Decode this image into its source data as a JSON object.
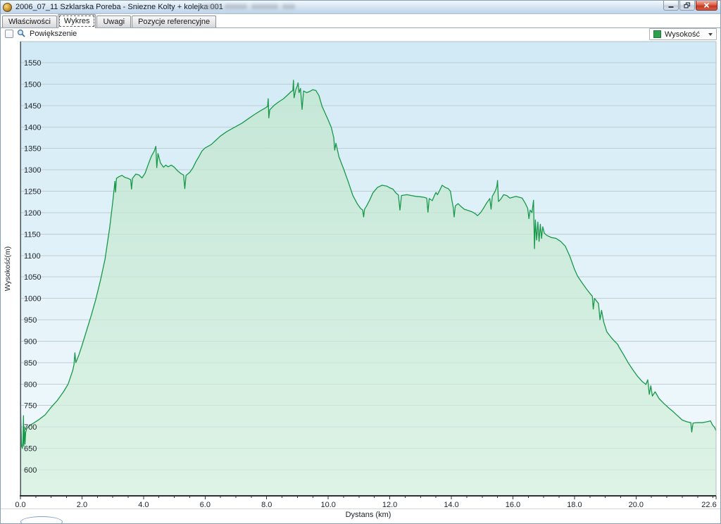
{
  "window": {
    "title": "2006_07_11 Szklarska Poreba - Sniezne Kolty + kolejka 001",
    "buttons": [
      "minimize",
      "restore",
      "close"
    ]
  },
  "tabs": [
    {
      "label": "Właściwości",
      "active": false
    },
    {
      "label": "Wykres",
      "active": true
    },
    {
      "label": "Uwagi",
      "active": false
    },
    {
      "label": "Pozycje referencyjne",
      "active": false
    }
  ],
  "toolbar": {
    "zoom_label": "Powiększenie",
    "zoom_checked": false
  },
  "legend": {
    "label": "Wysokość",
    "swatch_color": "#2f9e4f"
  },
  "chart_data": {
    "type": "area",
    "title": "",
    "xlabel": "Dystans (km)",
    "ylabel": "Wysokość(m)",
    "xlim": [
      0,
      22.6
    ],
    "ylim_gridlines": {
      "min": 600,
      "max": 1550,
      "step": 50
    },
    "x_major_ticks": [
      0,
      2,
      4,
      6,
      8,
      10,
      12,
      14,
      16,
      18,
      20,
      22.6
    ],
    "x_major_labels": [
      "0.0",
      "2.0",
      "4.0",
      "6.0",
      "8.0",
      "10.0",
      "12.0",
      "14.0",
      "16.0",
      "18.0",
      "20.0",
      "22.6"
    ],
    "x_minor_step": 0.5,
    "grid": "horizontal",
    "legend_position": "top-right",
    "colors": {
      "line": "#18984a",
      "fill_top": "#bfe5ca",
      "fill_bottom": "#d3f0dc",
      "grid": "#bfccd4",
      "bg_top": "#d2eaf5",
      "bg_bottom": "#f3fafd"
    },
    "series": [
      {
        "name": "Wysokość",
        "points": [
          [
            0,
            757
          ],
          [
            0.02,
            700
          ],
          [
            0.04,
            655
          ],
          [
            0.06,
            650
          ],
          [
            0.08,
            662
          ],
          [
            0.1,
            726
          ],
          [
            0.11,
            655
          ],
          [
            0.13,
            700
          ],
          [
            0.15,
            660
          ],
          [
            0.17,
            687
          ],
          [
            0.2,
            695
          ],
          [
            0.25,
            700
          ],
          [
            0.32,
            704
          ],
          [
            0.45,
            710
          ],
          [
            0.6,
            717
          ],
          [
            0.8,
            728
          ],
          [
            1.0,
            746
          ],
          [
            1.2,
            762
          ],
          [
            1.4,
            782
          ],
          [
            1.55,
            800
          ],
          [
            1.7,
            832
          ],
          [
            1.74,
            845
          ],
          [
            1.77,
            873
          ],
          [
            1.8,
            850
          ],
          [
            1.9,
            868
          ],
          [
            2.0,
            890
          ],
          [
            2.15,
            925
          ],
          [
            2.3,
            960
          ],
          [
            2.45,
            998
          ],
          [
            2.6,
            1042
          ],
          [
            2.75,
            1092
          ],
          [
            2.9,
            1165
          ],
          [
            3.0,
            1225
          ],
          [
            3.07,
            1273
          ],
          [
            3.09,
            1248
          ],
          [
            3.12,
            1280
          ],
          [
            3.2,
            1284
          ],
          [
            3.3,
            1287
          ],
          [
            3.4,
            1282
          ],
          [
            3.5,
            1280
          ],
          [
            3.58,
            1277
          ],
          [
            3.61,
            1255
          ],
          [
            3.64,
            1280
          ],
          [
            3.75,
            1290
          ],
          [
            3.85,
            1288
          ],
          [
            3.95,
            1281
          ],
          [
            4.05,
            1292
          ],
          [
            4.15,
            1312
          ],
          [
            4.25,
            1331
          ],
          [
            4.35,
            1344
          ],
          [
            4.4,
            1355
          ],
          [
            4.43,
            1305
          ],
          [
            4.47,
            1338
          ],
          [
            4.55,
            1316
          ],
          [
            4.65,
            1306
          ],
          [
            4.72,
            1311
          ],
          [
            4.8,
            1307
          ],
          [
            4.9,
            1311
          ],
          [
            5.0,
            1306
          ],
          [
            5.1,
            1298
          ],
          [
            5.22,
            1291
          ],
          [
            5.3,
            1288
          ],
          [
            5.34,
            1256
          ],
          [
            5.38,
            1287
          ],
          [
            5.5,
            1294
          ],
          [
            5.6,
            1304
          ],
          [
            5.7,
            1319
          ],
          [
            5.8,
            1331
          ],
          [
            5.9,
            1344
          ],
          [
            6.0,
            1351
          ],
          [
            6.1,
            1355
          ],
          [
            6.2,
            1359
          ],
          [
            6.35,
            1369
          ],
          [
            6.5,
            1379
          ],
          [
            6.7,
            1389
          ],
          [
            6.9,
            1397
          ],
          [
            7.0,
            1401
          ],
          [
            7.2,
            1409
          ],
          [
            7.4,
            1419
          ],
          [
            7.6,
            1429
          ],
          [
            7.8,
            1438
          ],
          [
            7.95,
            1444
          ],
          [
            8.03,
            1448
          ],
          [
            8.05,
            1466
          ],
          [
            8.07,
            1421
          ],
          [
            8.1,
            1440
          ],
          [
            8.25,
            1451
          ],
          [
            8.4,
            1459
          ],
          [
            8.55,
            1466
          ],
          [
            8.7,
            1476
          ],
          [
            8.8,
            1483
          ],
          [
            8.85,
            1485
          ],
          [
            8.87,
            1509
          ],
          [
            8.89,
            1468
          ],
          [
            8.95,
            1488
          ],
          [
            9.0,
            1497
          ],
          [
            9.02,
            1503
          ],
          [
            9.05,
            1480
          ],
          [
            9.1,
            1490
          ],
          [
            9.15,
            1441
          ],
          [
            9.2,
            1484
          ],
          [
            9.3,
            1480
          ],
          [
            9.4,
            1483
          ],
          [
            9.5,
            1487
          ],
          [
            9.6,
            1485
          ],
          [
            9.7,
            1473
          ],
          [
            9.8,
            1448
          ],
          [
            9.9,
            1432
          ],
          [
            10.0,
            1416
          ],
          [
            10.1,
            1399
          ],
          [
            10.18,
            1375
          ],
          [
            10.21,
            1346
          ],
          [
            10.25,
            1362
          ],
          [
            10.35,
            1330
          ],
          [
            10.5,
            1302
          ],
          [
            10.65,
            1272
          ],
          [
            10.8,
            1240
          ],
          [
            10.95,
            1220
          ],
          [
            11.05,
            1210
          ],
          [
            11.12,
            1206
          ],
          [
            11.15,
            1190
          ],
          [
            11.18,
            1208
          ],
          [
            11.25,
            1216
          ],
          [
            11.35,
            1230
          ],
          [
            11.45,
            1246
          ],
          [
            11.6,
            1259
          ],
          [
            11.75,
            1264
          ],
          [
            11.9,
            1262
          ],
          [
            12.0,
            1258
          ],
          [
            12.1,
            1255
          ],
          [
            12.2,
            1246
          ],
          [
            12.28,
            1241
          ],
          [
            12.33,
            1206
          ],
          [
            12.38,
            1240
          ],
          [
            12.55,
            1242
          ],
          [
            12.7,
            1240
          ],
          [
            12.85,
            1238
          ],
          [
            13.0,
            1237
          ],
          [
            13.1,
            1236
          ],
          [
            13.2,
            1234
          ],
          [
            13.24,
            1201
          ],
          [
            13.28,
            1233
          ],
          [
            13.38,
            1228
          ],
          [
            13.45,
            1240
          ],
          [
            13.5,
            1247
          ],
          [
            13.55,
            1242
          ],
          [
            13.62,
            1252
          ],
          [
            13.7,
            1264
          ],
          [
            13.8,
            1259
          ],
          [
            13.9,
            1256
          ],
          [
            13.97,
            1250
          ],
          [
            14.02,
            1228
          ],
          [
            14.06,
            1213
          ],
          [
            14.09,
            1190
          ],
          [
            14.13,
            1216
          ],
          [
            14.22,
            1221
          ],
          [
            14.32,
            1214
          ],
          [
            14.42,
            1208
          ],
          [
            14.55,
            1205
          ],
          [
            14.67,
            1202
          ],
          [
            14.77,
            1198
          ],
          [
            14.85,
            1193
          ],
          [
            14.95,
            1200
          ],
          [
            15.05,
            1211
          ],
          [
            15.15,
            1223
          ],
          [
            15.25,
            1233
          ],
          [
            15.29,
            1208
          ],
          [
            15.33,
            1238
          ],
          [
            15.43,
            1251
          ],
          [
            15.48,
            1262
          ],
          [
            15.5,
            1275
          ],
          [
            15.53,
            1226
          ],
          [
            15.6,
            1231
          ],
          [
            15.7,
            1242
          ],
          [
            15.8,
            1240
          ],
          [
            15.9,
            1234
          ],
          [
            16.0,
            1236
          ],
          [
            16.1,
            1238
          ],
          [
            16.2,
            1236
          ],
          [
            16.3,
            1234
          ],
          [
            16.4,
            1222
          ],
          [
            16.48,
            1210
          ],
          [
            16.52,
            1186
          ],
          [
            16.56,
            1206
          ],
          [
            16.62,
            1200
          ],
          [
            16.67,
            1229
          ],
          [
            16.7,
            1116
          ],
          [
            16.73,
            1183
          ],
          [
            16.77,
            1136
          ],
          [
            16.81,
            1178
          ],
          [
            16.85,
            1133
          ],
          [
            16.89,
            1173
          ],
          [
            16.93,
            1140
          ],
          [
            16.97,
            1167
          ],
          [
            17.02,
            1152
          ],
          [
            17.1,
            1147
          ],
          [
            17.25,
            1142
          ],
          [
            17.4,
            1140
          ],
          [
            17.55,
            1133
          ],
          [
            17.7,
            1122
          ],
          [
            17.85,
            1098
          ],
          [
            18.0,
            1068
          ],
          [
            18.1,
            1052
          ],
          [
            18.25,
            1036
          ],
          [
            18.4,
            1021
          ],
          [
            18.52,
            1010
          ],
          [
            18.58,
            1005
          ],
          [
            18.61,
            975
          ],
          [
            18.65,
            1000
          ],
          [
            18.78,
            988
          ],
          [
            18.83,
            950
          ],
          [
            18.88,
            972
          ],
          [
            18.95,
            945
          ],
          [
            19.05,
            922
          ],
          [
            19.2,
            908
          ],
          [
            19.3,
            900
          ],
          [
            19.4,
            893
          ],
          [
            19.45,
            886
          ],
          [
            19.6,
            868
          ],
          [
            19.75,
            849
          ],
          [
            19.9,
            833
          ],
          [
            20.05,
            818
          ],
          [
            20.2,
            806
          ],
          [
            20.32,
            799
          ],
          [
            20.38,
            810
          ],
          [
            20.43,
            776
          ],
          [
            20.48,
            796
          ],
          [
            20.53,
            772
          ],
          [
            20.62,
            782
          ],
          [
            20.75,
            766
          ],
          [
            20.9,
            755
          ],
          [
            21.05,
            745
          ],
          [
            21.2,
            736
          ],
          [
            21.35,
            726
          ],
          [
            21.5,
            716
          ],
          [
            21.65,
            712
          ],
          [
            21.78,
            710
          ],
          [
            21.81,
            688
          ],
          [
            21.85,
            709
          ],
          [
            22.0,
            710
          ],
          [
            22.15,
            710
          ],
          [
            22.3,
            712
          ],
          [
            22.42,
            714
          ],
          [
            22.48,
            705
          ],
          [
            22.55,
            699
          ],
          [
            22.6,
            691
          ]
        ]
      }
    ]
  }
}
